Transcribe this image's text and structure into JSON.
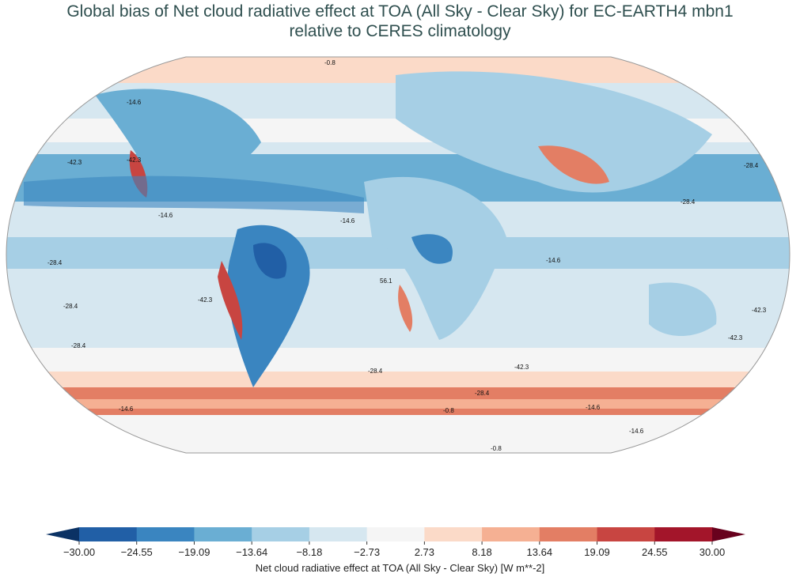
{
  "title_line1": "Global bias of Net cloud radiative effect at TOA (All Sky - Clear Sky) for EC-EARTH4 mbn1",
  "title_line2": "relative to CERES climatology",
  "colorbar": {
    "label": "Net cloud radiative effect at TOA (All Sky - Clear Sky) [W m**-2]",
    "ticks": [
      "−30.00",
      "−24.55",
      "−19.09",
      "−13.64",
      "−8.18",
      "−2.73",
      "2.73",
      "8.18",
      "13.64",
      "19.09",
      "24.55",
      "30.00"
    ],
    "colors": [
      "#215fa6",
      "#3a85c0",
      "#6aaed3",
      "#a6cfe5",
      "#d6e7f0",
      "#f5f5f5",
      "#fbdac8",
      "#f5b093",
      "#e37e64",
      "#c84541",
      "#a3152a"
    ],
    "extend_low": "#0b3264",
    "extend_high": "#68011d"
  },
  "contour_labels": [
    "-42.3",
    "-28.4",
    "-14.6",
    "-14.6",
    "-42.3",
    "-28.4",
    "-14.6",
    "-28.4",
    "56.1",
    "-42.3",
    "-28.4",
    "-14.6",
    "-0.8",
    "-28.4",
    "-42.3",
    "-28.4",
    "-14.6",
    "-42.3",
    "-28.4",
    "-42.3",
    "-14.6",
    "-0.8",
    "-0.8",
    "-14.6"
  ]
}
